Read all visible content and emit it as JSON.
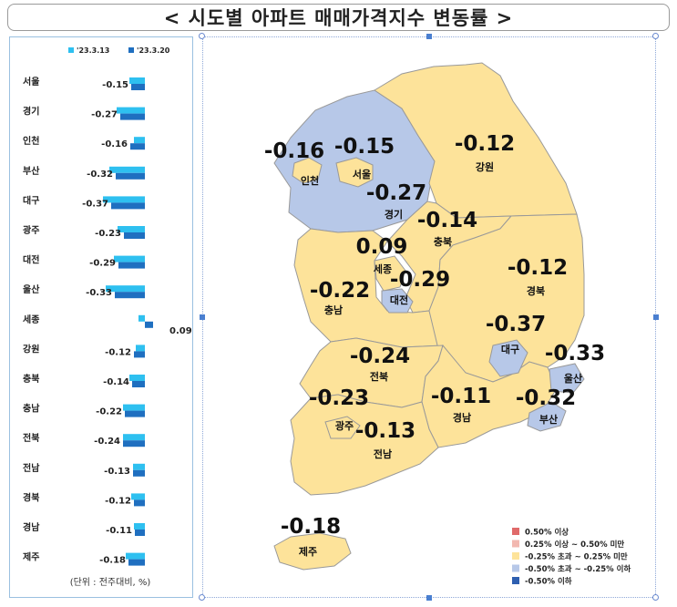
{
  "title": "< 시도별 아파트 매매가격지수 변동률 >",
  "bar_chart": {
    "legend": [
      {
        "name": "'23.3.13",
        "color": "#2ec0f0"
      },
      {
        "name": "'23.3.20",
        "color": "#1f6fc0"
      }
    ],
    "unit_note": "(단위 : 전주대비, %)"
  },
  "chart_data": [
    {
      "type": "bar",
      "orientation": "horizontal",
      "categories": [
        "서울",
        "경기",
        "인천",
        "부산",
        "대구",
        "광주",
        "대전",
        "울산",
        "세종",
        "강원",
        "충북",
        "충남",
        "전북",
        "전남",
        "경북",
        "경남",
        "제주"
      ],
      "series": [
        {
          "name": "'23.3.13",
          "values": [
            -0.17,
            -0.31,
            -0.12,
            -0.39,
            -0.46,
            -0.3,
            -0.34,
            -0.43,
            -0.07,
            -0.1,
            -0.17,
            -0.24,
            -0.24,
            -0.13,
            -0.15,
            -0.12,
            -0.21
          ]
        },
        {
          "name": "'23.3.20",
          "values": [
            -0.15,
            -0.27,
            -0.16,
            -0.32,
            -0.37,
            -0.23,
            -0.29,
            -0.33,
            0.09,
            -0.12,
            -0.14,
            -0.22,
            -0.24,
            -0.13,
            -0.12,
            -0.11,
            -0.18
          ]
        }
      ],
      "data_labels": [
        "-0.15",
        "-0.27",
        "-0.16",
        "-0.32",
        "-0.37",
        "-0.23",
        "-0.29",
        "-0.33",
        "0.09",
        "-0.12",
        "-0.14",
        "-0.22",
        "-0.24",
        "-0.13",
        "-0.12",
        "-0.11",
        "-0.18"
      ],
      "xlim": [
        -0.5,
        0.15
      ]
    }
  ],
  "map": {
    "regions": [
      {
        "name": "인천",
        "value": "-0.16",
        "color": "#fde39a"
      },
      {
        "name": "서울",
        "value": "-0.15",
        "color": "#fde39a"
      },
      {
        "name": "경기",
        "value": "-0.27",
        "color": "#b7c8e8"
      },
      {
        "name": "강원",
        "value": "-0.12",
        "color": "#fde39a"
      },
      {
        "name": "충북",
        "value": "-0.14",
        "color": "#fde39a"
      },
      {
        "name": "세종",
        "value": "0.09",
        "color": "#fde39a"
      },
      {
        "name": "충남",
        "value": "-0.22",
        "color": "#fde39a"
      },
      {
        "name": "대전",
        "value": "-0.29",
        "color": "#b7c8e8"
      },
      {
        "name": "경북",
        "value": "-0.12",
        "color": "#fde39a"
      },
      {
        "name": "대구",
        "value": "-0.37",
        "color": "#b7c8e8"
      },
      {
        "name": "울산",
        "value": "-0.33",
        "color": "#b7c8e8"
      },
      {
        "name": "전북",
        "value": "-0.24",
        "color": "#fde39a"
      },
      {
        "name": "광주",
        "value": "-0.23",
        "color": "#fde39a"
      },
      {
        "name": "경남",
        "value": "-0.11",
        "color": "#fde39a"
      },
      {
        "name": "부산",
        "value": "-0.32",
        "color": "#b7c8e8"
      },
      {
        "name": "전남",
        "value": "-0.13",
        "color": "#fde39a"
      },
      {
        "name": "제주",
        "value": "-0.18",
        "color": "#fde39a"
      }
    ],
    "legend": [
      {
        "label": "0.50% 이상",
        "color": "#e06a6a"
      },
      {
        "label": "0.25% 이상 ~ 0.50% 미만",
        "color": "#f2b8b0"
      },
      {
        "label": "-0.25% 초과 ~ 0.25% 미만",
        "color": "#fde39a"
      },
      {
        "label": "-0.50% 초과 ~ -0.25% 이하",
        "color": "#b7c8e8"
      },
      {
        "label": "-0.50% 이하",
        "color": "#2e5fb0"
      }
    ]
  }
}
